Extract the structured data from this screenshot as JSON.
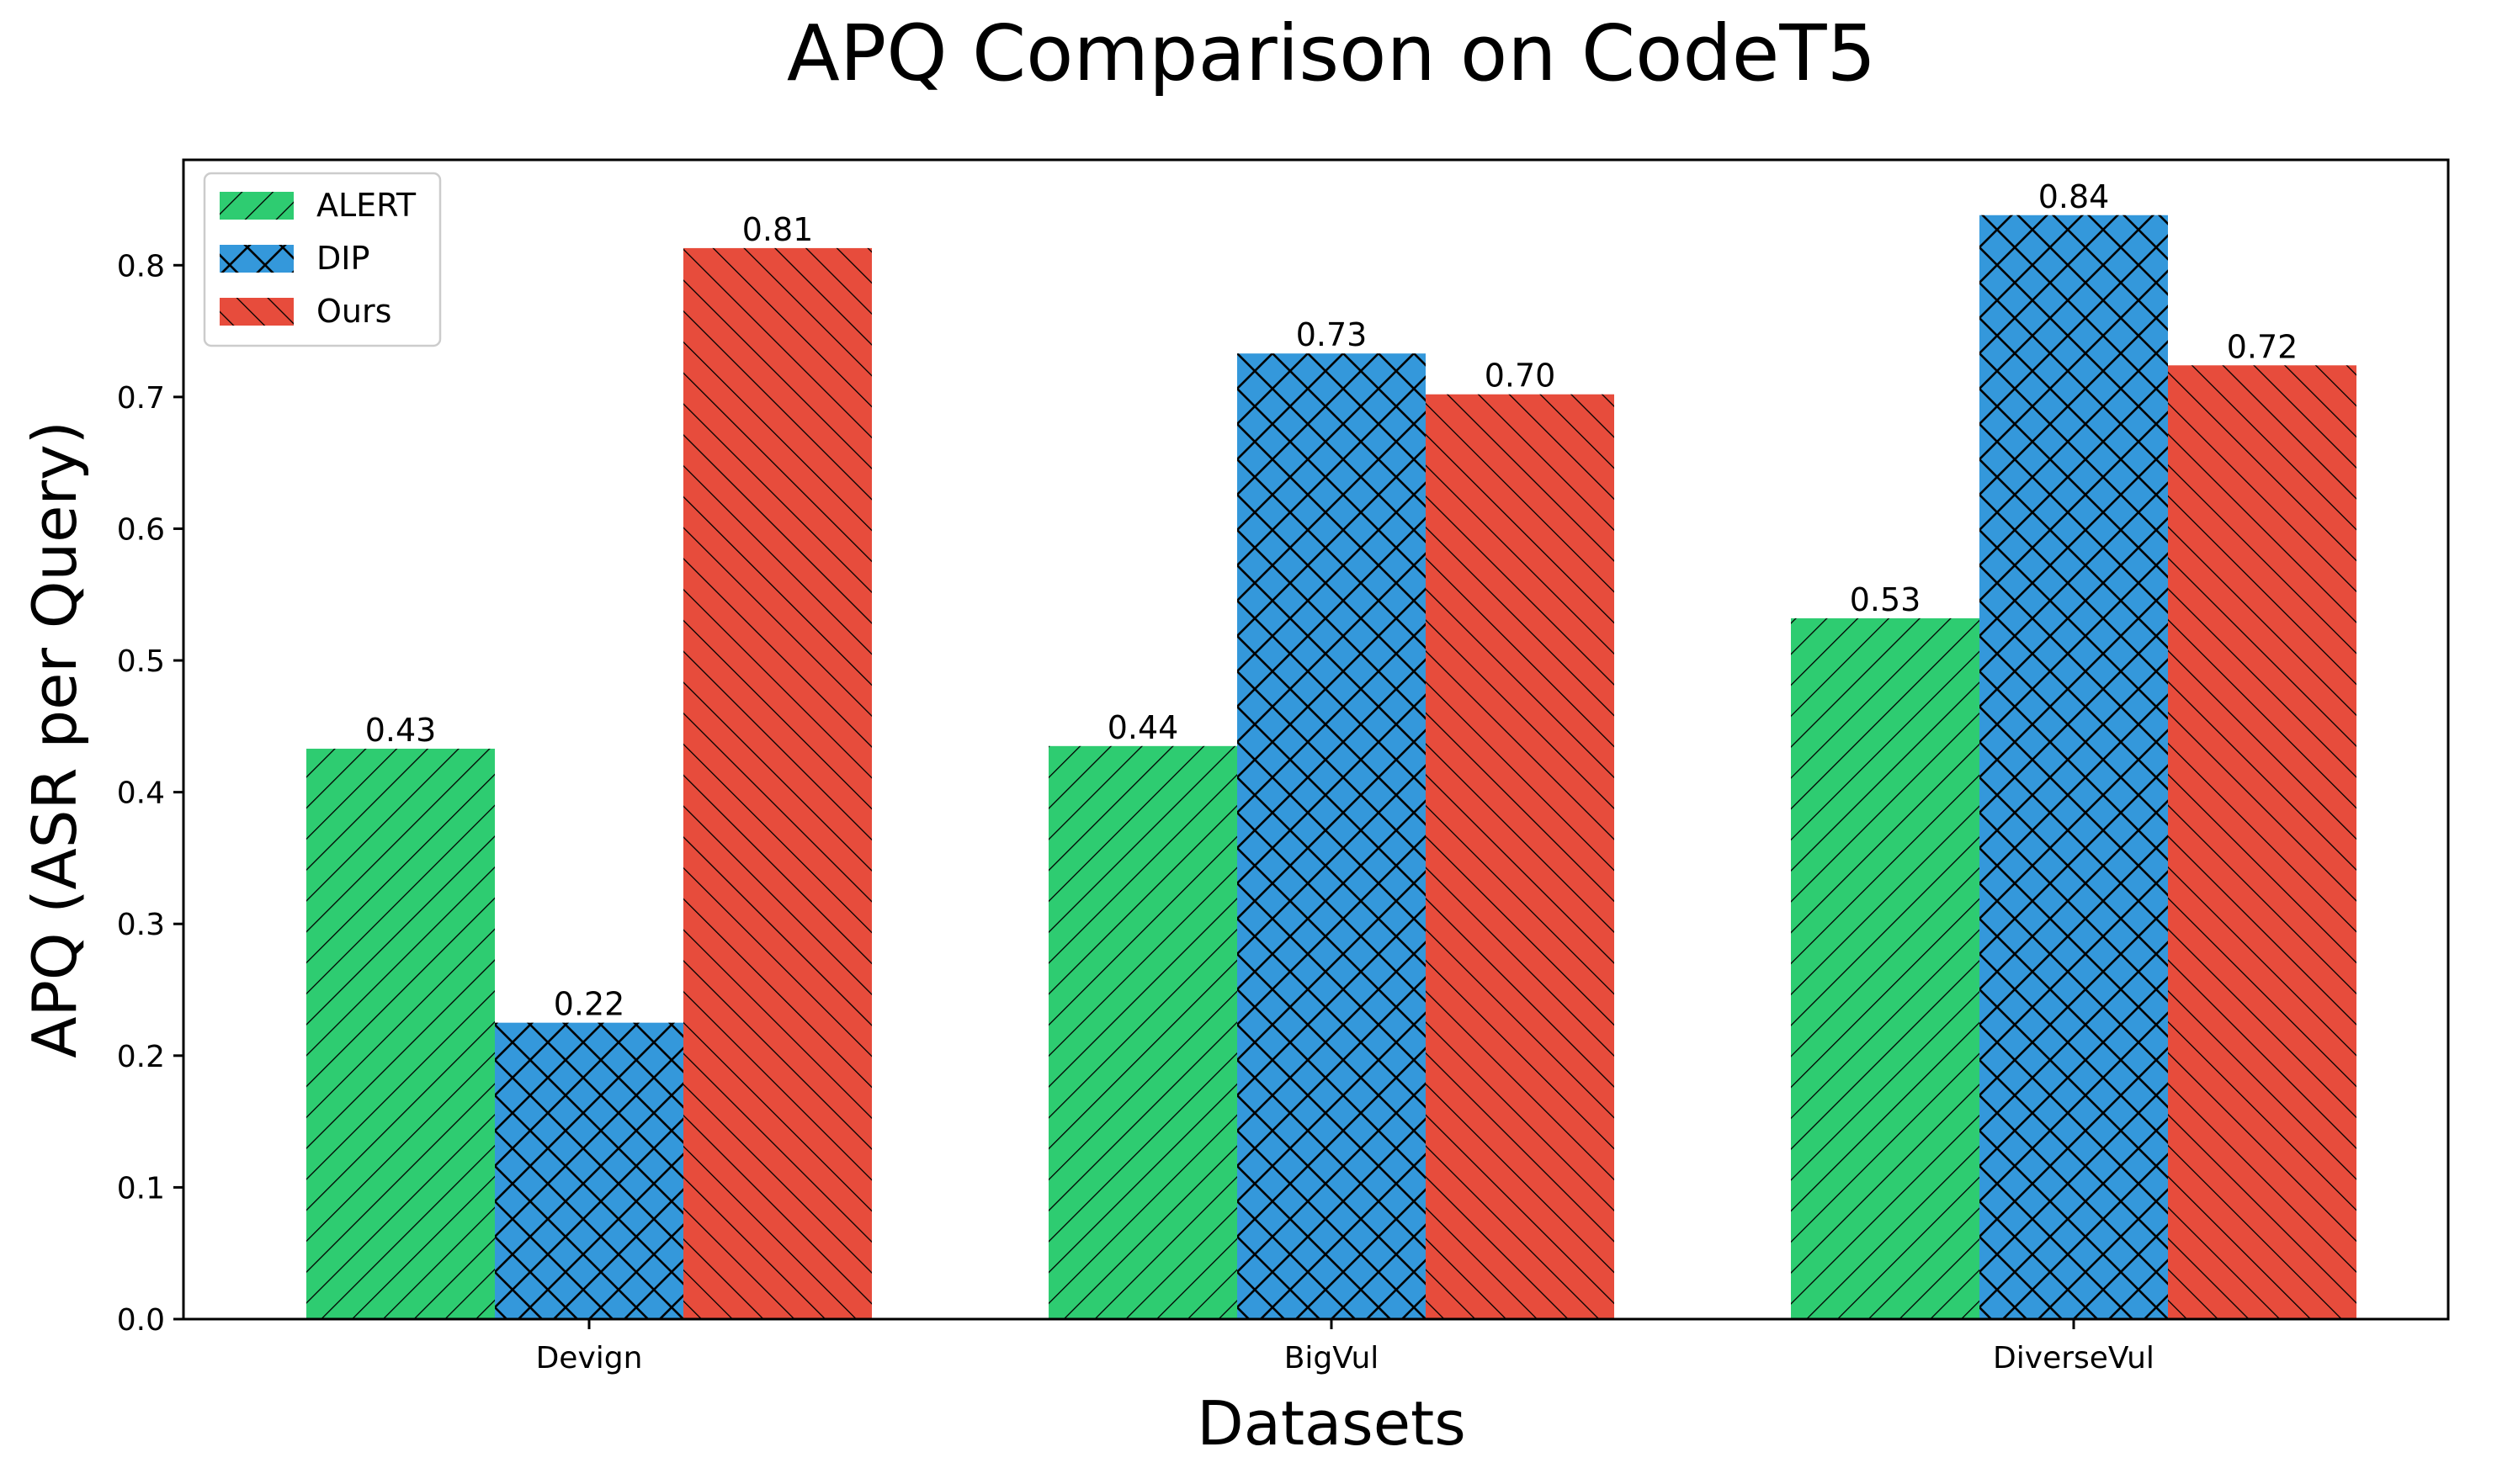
{
  "chart_data": {
    "type": "bar",
    "title": "APQ Comparison on CodeT5",
    "xlabel": "Datasets",
    "ylabel": "APQ (ASR per Query)",
    "categories": [
      "Devign",
      "BigVul",
      "DiverseVul"
    ],
    "series": [
      {
        "name": "ALERT",
        "color": "#2ecc71",
        "hatch": "forward-diagonal",
        "values": [
          0.433,
          0.435,
          0.532
        ],
        "labels": [
          "0.43",
          "0.44",
          "0.53"
        ]
      },
      {
        "name": "DIP",
        "color": "#3498db",
        "hatch": "cross-diagonal",
        "values": [
          0.225,
          0.733,
          0.838
        ],
        "labels": [
          "0.22",
          "0.73",
          "0.84"
        ]
      },
      {
        "name": "Ours",
        "color": "#e74c3c",
        "hatch": "back-diagonal",
        "values": [
          0.813,
          0.702,
          0.724
        ],
        "labels": [
          "0.81",
          "0.70",
          "0.72"
        ]
      }
    ],
    "ylim": [
      0,
      0.88
    ],
    "yticks": [
      "0.0",
      "0.1",
      "0.2",
      "0.3",
      "0.4",
      "0.5",
      "0.6",
      "0.7",
      "0.8"
    ],
    "legend_position": "top-left",
    "grid": false
  }
}
